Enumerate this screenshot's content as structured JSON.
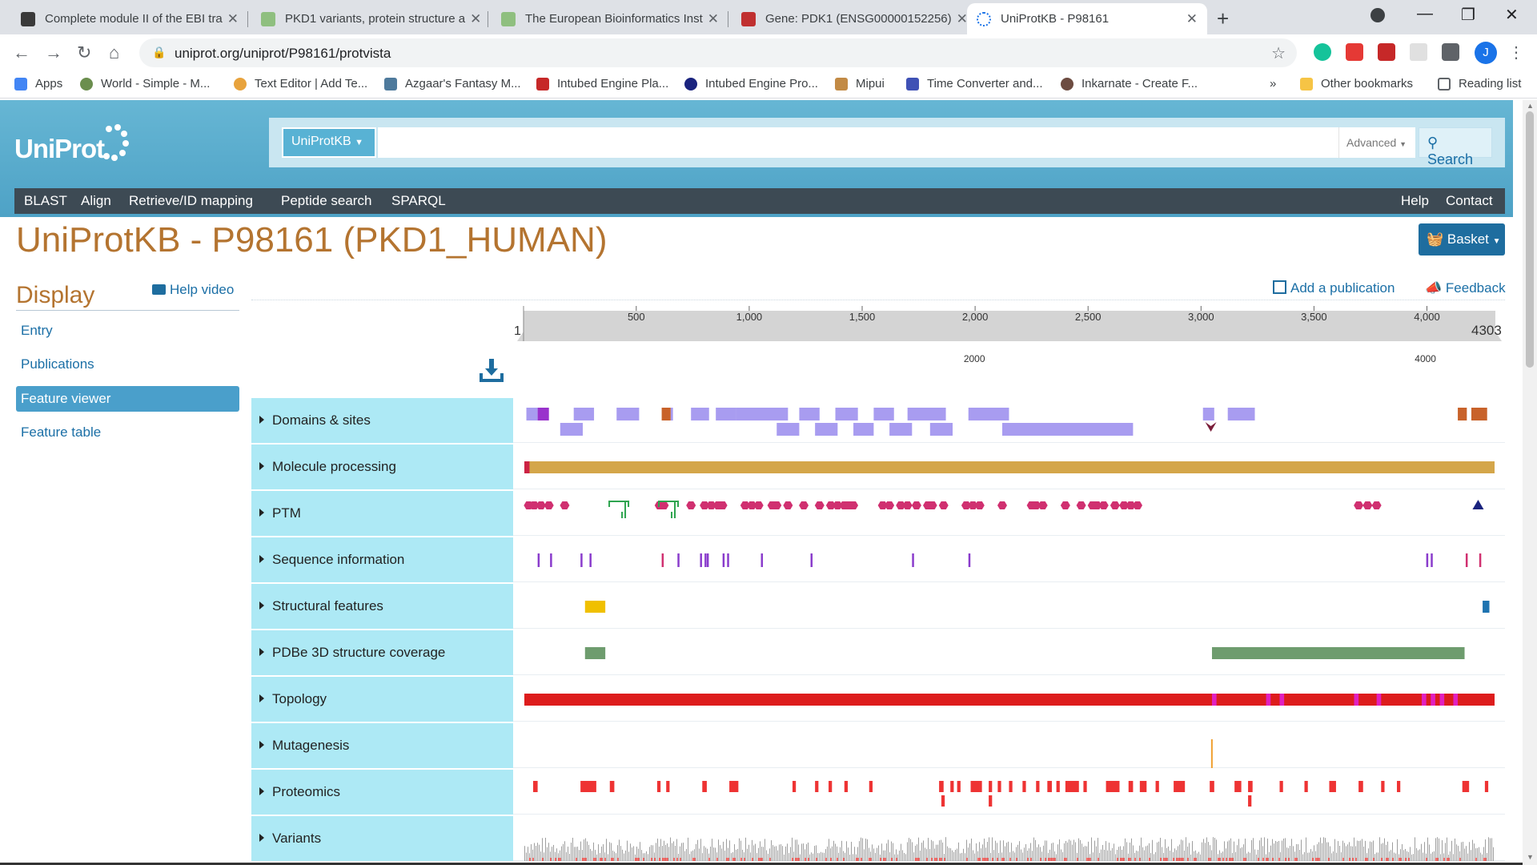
{
  "browser": {
    "tabs": [
      {
        "title": "Complete module II of the EBI tra",
        "favicon_color": "#3a3a3a",
        "active": false
      },
      {
        "title": "PKD1 variants, protein structure a",
        "favicon_color": "#8fbf7f",
        "active": false
      },
      {
        "title": "The European Bioinformatics Inst",
        "favicon_color": "#8fbf7f",
        "active": false
      },
      {
        "title": "Gene: PDK1 (ENSG00000152256)",
        "favicon_color": "#c03030",
        "active": false
      },
      {
        "title": "UniProtKB - P98161",
        "favicon_color": "#1a73e8",
        "active": true
      }
    ],
    "url": "uniprot.org/uniprot/P98161/protvista",
    "profile_initial": "J",
    "bookmarks": [
      {
        "label": "Apps",
        "color": "#4285f4"
      },
      {
        "label": "World - Simple - M...",
        "color": "#6b8e4e"
      },
      {
        "label": "Text Editor | Add Te...",
        "color": "#e8a33d"
      },
      {
        "label": "Azgaar's Fantasy M...",
        "color": "#4e7a9c"
      },
      {
        "label": "Intubed Engine Pla...",
        "color": "#c62828"
      },
      {
        "label": "Intubed Engine Pro...",
        "color": "#1a237e"
      },
      {
        "label": "Mipui",
        "color": "#c28a45"
      },
      {
        "label": "Time Converter and...",
        "color": "#3f51b5"
      },
      {
        "label": "Inkarnate - Create F...",
        "color": "#6d4c41"
      }
    ],
    "bookmarks_more": "»",
    "other_bookmarks": "Other bookmarks",
    "reading_list": "Reading list"
  },
  "uniprot": {
    "logo": "UniProt",
    "db_select": "UniProtKB",
    "advanced": "Advanced",
    "search_label": "Search",
    "nav_left": [
      "BLAST",
      "Align",
      "Retrieve/ID mapping",
      "Peptide search",
      "SPARQL"
    ],
    "nav_right": [
      "Help",
      "Contact"
    ]
  },
  "page": {
    "title": "UniProtKB - P98161 (PKD1_HUMAN)",
    "basket_label": "Basket",
    "display_heading": "Display",
    "help_video": "Help video",
    "sidebar": [
      {
        "label": "Entry",
        "active": false
      },
      {
        "label": "Publications",
        "active": false
      },
      {
        "label": "Feature viewer",
        "active": true
      },
      {
        "label": "Feature table",
        "active": false
      }
    ],
    "add_publication": "Add a publication",
    "feedback": "Feedback"
  },
  "viewer": {
    "sequence_length": 4303,
    "ruler_start_label": "1",
    "ruler_end_label": "4303",
    "ruler_ticks": [
      500,
      1000,
      1500,
      2000,
      2500,
      3000,
      3500,
      4000
    ],
    "ruler_tick_labels": [
      "500",
      "1,000",
      "1,500",
      "2,000",
      "2,500",
      "3,000",
      "3,500",
      "4,000"
    ],
    "secondary_ticks": [
      2000,
      4000
    ],
    "secondary_tick_labels": [
      "2000",
      "4000"
    ],
    "tracks": [
      {
        "id": "domains",
        "label": "Domains & sites",
        "color": "#a89cf0",
        "features": [
          [
            10,
            60,
            0,
            "#a89cf0"
          ],
          [
            60,
            110,
            0,
            "#9932cc"
          ],
          [
            220,
            310,
            0,
            "#a89cf0"
          ],
          [
            410,
            510,
            0,
            "#a89cf0"
          ],
          [
            610,
            650,
            0,
            "#c8622a"
          ],
          [
            650,
            660,
            0,
            "#a89cf0"
          ],
          [
            740,
            820,
            0,
            "#a89cf0"
          ],
          [
            850,
            940,
            0,
            "#a89cf0"
          ],
          [
            940,
            1170,
            0,
            "#a89cf0"
          ],
          [
            1220,
            1310,
            0,
            "#a89cf0"
          ],
          [
            1380,
            1480,
            0,
            "#a89cf0"
          ],
          [
            1550,
            1640,
            0,
            "#a89cf0"
          ],
          [
            1700,
            1870,
            0,
            "#a89cf0"
          ],
          [
            1970,
            2150,
            0,
            "#a89cf0"
          ],
          [
            3010,
            3060,
            0,
            "#a89cf0"
          ],
          [
            3120,
            3240,
            0,
            "#a89cf0"
          ],
          [
            4140,
            4180,
            0,
            "#c8622a"
          ],
          [
            4200,
            4270,
            0,
            "#c8622a"
          ],
          [
            160,
            260,
            1,
            "#a89cf0"
          ],
          [
            1120,
            1220,
            1,
            "#a89cf0"
          ],
          [
            1290,
            1390,
            1,
            "#a89cf0"
          ],
          [
            1460,
            1550,
            1,
            "#a89cf0"
          ],
          [
            1620,
            1720,
            1,
            "#a89cf0"
          ],
          [
            1800,
            1900,
            1,
            "#a89cf0"
          ],
          [
            2120,
            2700,
            1,
            "#a89cf0"
          ]
        ],
        "markers": [
          3045
        ]
      },
      {
        "id": "molecule",
        "label": "Molecule processing",
        "color": "#d4a64a",
        "features": [
          [
            1,
            24,
            0,
            "#cc2244"
          ],
          [
            24,
            4303,
            0,
            "#d4a64a"
          ]
        ]
      },
      {
        "id": "ptm",
        "label": "PTM",
        "color": "#d03070",
        "features": [],
        "glyph_positions": [
          20,
          45,
          75,
          110,
          180,
          600,
          620,
          740,
          800,
          830,
          860,
          880,
          980,
          1010,
          1040,
          1100,
          1120,
          1170,
          1240,
          1310,
          1360,
          1390,
          1420,
          1440,
          1460,
          1590,
          1620,
          1670,
          1700,
          1740,
          1790,
          1810,
          1860,
          1960,
          1990,
          2020,
          2120,
          2250,
          2270,
          2300,
          2400,
          2470,
          2520,
          2540,
          2570,
          2620,
          2660,
          2690,
          2720,
          3700,
          3740,
          3780
        ],
        "glycan_positions": [
          420,
          640
        ],
        "triangle_position": 4230
      },
      {
        "id": "seqinfo",
        "label": "Sequence information",
        "color": "#8a3ccc",
        "features": [],
        "ticks": [
          [
            60,
            "#8a3ccc"
          ],
          [
            115,
            "#8a3ccc"
          ],
          [
            250,
            "#8a3ccc"
          ],
          [
            290,
            "#8a3ccc"
          ],
          [
            610,
            "#d03070"
          ],
          [
            680,
            "#8a3ccc"
          ],
          [
            780,
            "#8a3ccc"
          ],
          [
            800,
            "#8a3ccc"
          ],
          [
            810,
            "#8a3ccc"
          ],
          [
            880,
            "#8a3ccc"
          ],
          [
            900,
            "#8a3ccc"
          ],
          [
            1050,
            "#8a3ccc"
          ],
          [
            1270,
            "#8a3ccc"
          ],
          [
            1720,
            "#8a3ccc"
          ],
          [
            1970,
            "#8a3ccc"
          ],
          [
            4000,
            "#8a3ccc"
          ],
          [
            4020,
            "#8a3ccc"
          ],
          [
            4175,
            "#d03070"
          ],
          [
            4235,
            "#d03070"
          ]
        ]
      },
      {
        "id": "structural",
        "label": "Structural features",
        "color": "#f0c000",
        "features": [
          [
            270,
            360,
            0,
            "#f0c000"
          ],
          [
            4250,
            4280,
            0,
            "#1e73b0"
          ]
        ]
      },
      {
        "id": "pdbe",
        "label": "PDBe 3D structure coverage",
        "color": "#6e9c6e",
        "features": [
          [
            270,
            360,
            0,
            "#6e9c6e"
          ],
          [
            3050,
            4170,
            0,
            "#6e9c6e"
          ]
        ]
      },
      {
        "id": "topology",
        "label": "Topology",
        "color": "#dd1c1c",
        "features": [
          [
            1,
            4303,
            0,
            "#dd1c1c"
          ]
        ],
        "magenta_marks": [
          [
            3050,
            3070
          ],
          [
            3290,
            3310
          ],
          [
            3350,
            3370
          ],
          [
            3680,
            3700
          ],
          [
            3780,
            3800
          ],
          [
            3980,
            4000
          ],
          [
            4020,
            4040
          ],
          [
            4060,
            4080
          ],
          [
            4120,
            4140
          ]
        ]
      },
      {
        "id": "mutagenesis",
        "label": "Mutagenesis",
        "color": "#f0a030",
        "features": [],
        "ticks": [
          [
            3046,
            "#f0a030"
          ]
        ]
      },
      {
        "id": "proteomics",
        "label": "Proteomics",
        "color": "#ee3333",
        "features": [
          [
            40,
            60,
            0
          ],
          [
            250,
            320,
            0
          ],
          [
            380,
            400,
            0
          ],
          [
            590,
            605,
            0
          ],
          [
            630,
            645,
            0
          ],
          [
            790,
            810,
            0
          ],
          [
            910,
            950,
            0
          ],
          [
            1190,
            1205,
            0
          ],
          [
            1290,
            1305,
            0
          ],
          [
            1350,
            1365,
            0
          ],
          [
            1420,
            1435,
            0
          ],
          [
            1530,
            1545,
            0
          ],
          [
            1840,
            1860,
            0
          ],
          [
            1890,
            1905,
            0
          ],
          [
            1920,
            1935,
            0
          ],
          [
            1980,
            2030,
            0
          ],
          [
            2060,
            2075,
            0
          ],
          [
            2100,
            2115,
            0
          ],
          [
            2150,
            2165,
            0
          ],
          [
            2210,
            2225,
            0
          ],
          [
            2270,
            2285,
            0
          ],
          [
            2320,
            2340,
            0
          ],
          [
            2360,
            2375,
            0
          ],
          [
            2400,
            2460,
            0
          ],
          [
            2480,
            2495,
            0
          ],
          [
            2580,
            2640,
            0
          ],
          [
            2680,
            2700,
            0
          ],
          [
            2730,
            2760,
            0
          ],
          [
            2800,
            2815,
            0
          ],
          [
            2880,
            2930,
            0
          ],
          [
            3040,
            3060,
            0
          ],
          [
            3150,
            3180,
            0
          ],
          [
            3210,
            3230,
            0
          ],
          [
            3350,
            3365,
            0
          ],
          [
            3460,
            3475,
            0
          ],
          [
            3570,
            3600,
            0
          ],
          [
            3700,
            3720,
            0
          ],
          [
            3800,
            3815,
            0
          ],
          [
            3870,
            3885,
            0
          ],
          [
            4160,
            4190,
            0
          ],
          [
            4260,
            4275,
            0
          ],
          [
            1850,
            1865,
            1
          ],
          [
            2060,
            2075,
            1
          ],
          [
            3210,
            3225,
            1
          ]
        ]
      },
      {
        "id": "variants",
        "label": "Variants",
        "color": "#a0a0a0",
        "features": []
      }
    ]
  }
}
